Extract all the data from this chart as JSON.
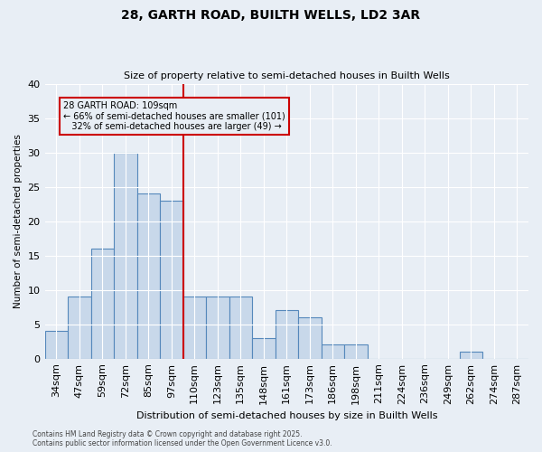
{
  "title1": "28, GARTH ROAD, BUILTH WELLS, LD2 3AR",
  "title2": "Size of property relative to semi-detached houses in Builth Wells",
  "xlabel": "Distribution of semi-detached houses by size in Builth Wells",
  "ylabel": "Number of semi-detached properties",
  "footnote1": "Contains HM Land Registry data © Crown copyright and database right 2025.",
  "footnote2": "Contains public sector information licensed under the Open Government Licence v3.0.",
  "bin_labels": [
    "34sqm",
    "47sqm",
    "59sqm",
    "72sqm",
    "85sqm",
    "97sqm",
    "110sqm",
    "123sqm",
    "135sqm",
    "148sqm",
    "161sqm",
    "173sqm",
    "186sqm",
    "198sqm",
    "211sqm",
    "224sqm",
    "236sqm",
    "249sqm",
    "262sqm",
    "274sqm",
    "287sqm"
  ],
  "bar_values": [
    4,
    9,
    16,
    30,
    24,
    23,
    9,
    9,
    9,
    3,
    7,
    6,
    2,
    2,
    0,
    0,
    0,
    0,
    1,
    0,
    0
  ],
  "bar_color": "#c8d8ea",
  "bar_edge_color": "#5588bb",
  "vline_x": 5.5,
  "vline_color": "#cc0000",
  "annotation_line1": "28 GARTH ROAD: 109sqm",
  "annotation_line2": "← 66% of semi-detached houses are smaller (101)",
  "annotation_line3": "   32% of semi-detached houses are larger (49) →",
  "annotation_box_color": "#cc0000",
  "ylim": [
    0,
    40
  ],
  "yticks": [
    0,
    5,
    10,
    15,
    20,
    25,
    30,
    35,
    40
  ],
  "background_color": "#e8eef5",
  "grid_color": "#ffffff"
}
